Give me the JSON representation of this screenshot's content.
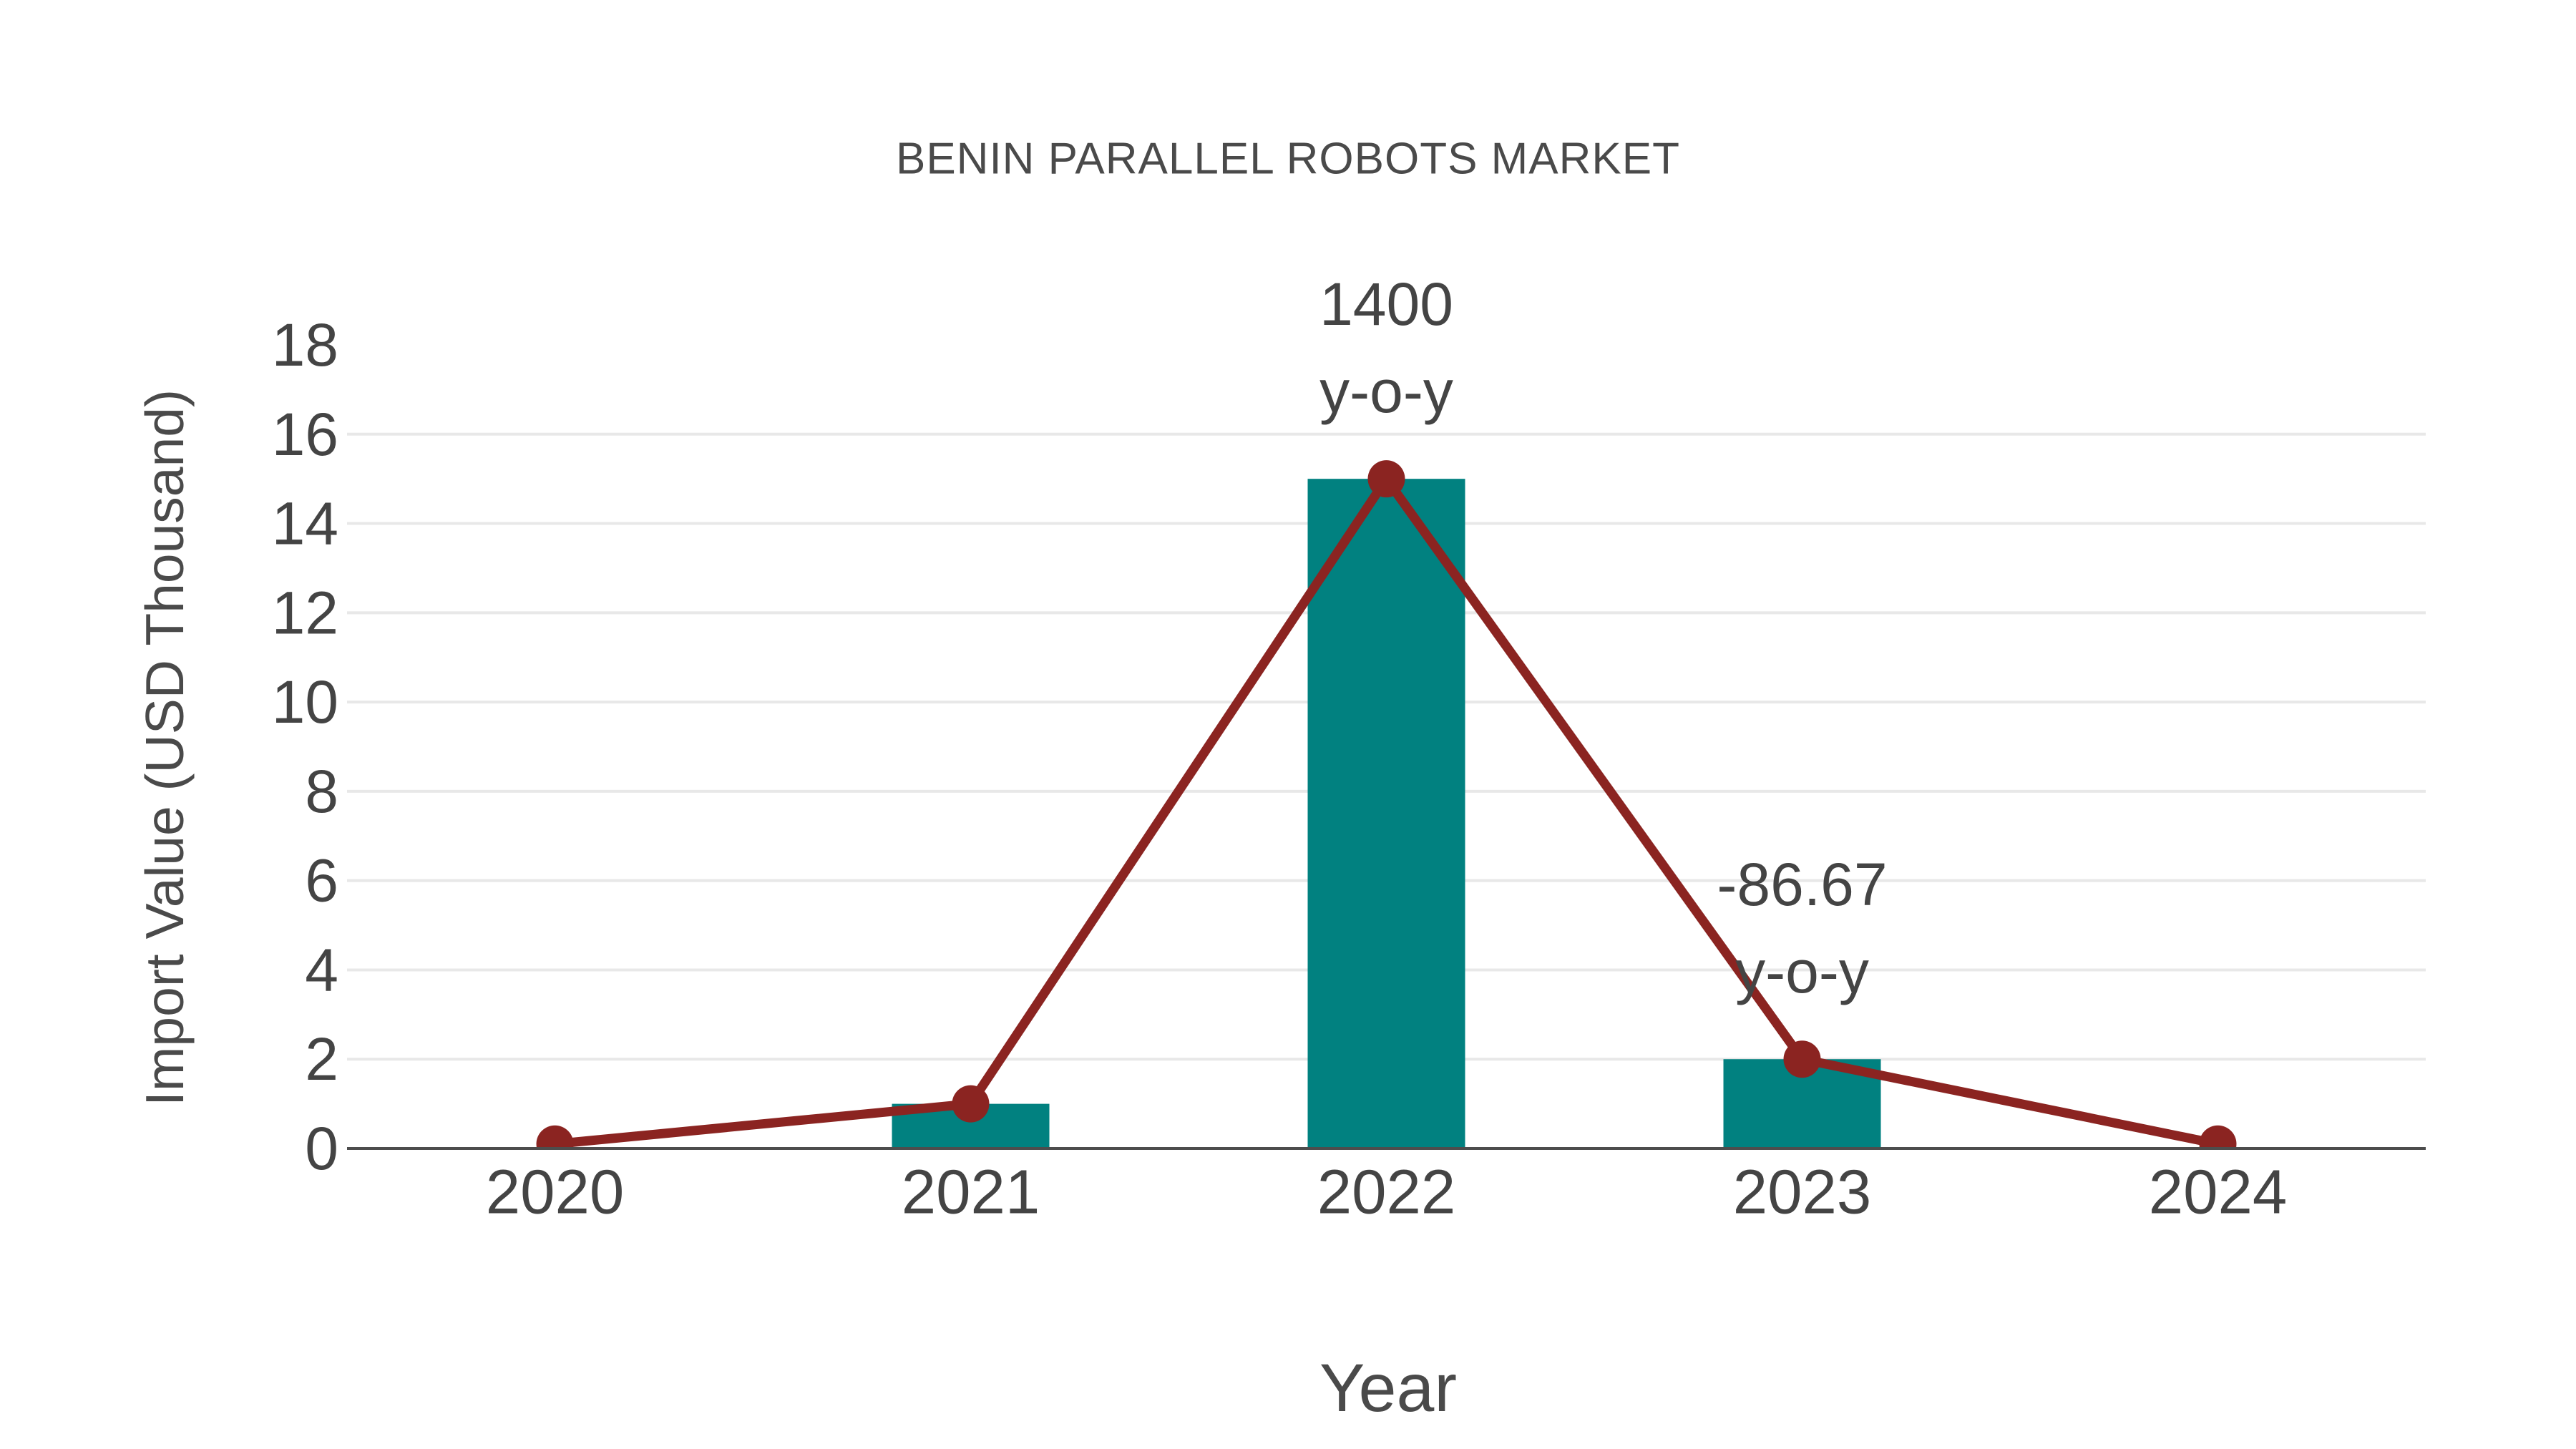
{
  "chart_data": {
    "type": "combo-bar-line",
    "title": "BENIN PARALLEL ROBOTS MARKET",
    "xlabel": "Year",
    "ylabel": "Import Value (USD Thousand)",
    "categories": [
      "2020",
      "2021",
      "2022",
      "2023",
      "2024"
    ],
    "series": [
      {
        "name": "Import Value bars",
        "type": "bar",
        "values": [
          0,
          1,
          15,
          2,
          0
        ]
      },
      {
        "name": "Import Value line",
        "type": "line",
        "values": [
          0.1,
          1,
          15,
          2,
          0.1
        ]
      }
    ],
    "ylim": [
      0,
      18
    ],
    "ytick_step": 2,
    "yticks": [
      0,
      2,
      4,
      6,
      8,
      10,
      12,
      14,
      16,
      18
    ],
    "grid": "horizontal-light",
    "legend_position": "none",
    "annotations": [
      {
        "category": "2022",
        "lines": [
          "1400",
          "y-o-y"
        ]
      },
      {
        "category": "2023",
        "lines": [
          "-86.67",
          "y-o-y"
        ]
      }
    ],
    "colors": {
      "bar": "#018180",
      "line": "#8B2421",
      "marker": "#8B2421",
      "grid": "#E8E8E8",
      "axis": "#4D4D4D",
      "tick_text": "#444444",
      "title_text": "#4A4A4A",
      "background": "#FFFFFF"
    }
  }
}
